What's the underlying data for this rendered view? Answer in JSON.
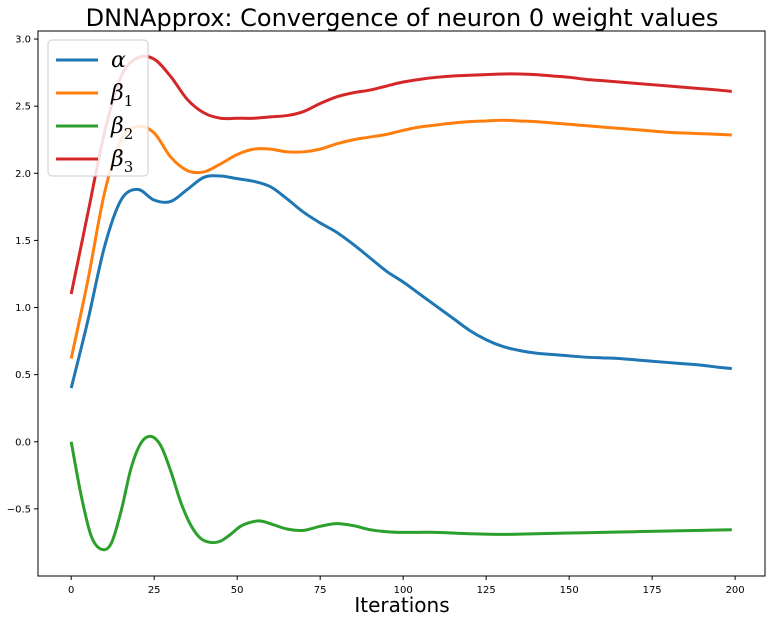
{
  "chart_data": {
    "type": "line",
    "title": "DNNApprox: Convergence of neuron 0 weight values",
    "xlabel": "Iterations",
    "ylabel": "",
    "xlim": [
      -10,
      209
    ],
    "ylim": [
      -1.0,
      3.06
    ],
    "xticks": [
      0,
      25,
      50,
      75,
      100,
      125,
      150,
      175,
      200
    ],
    "yticks": [
      -0.5,
      0.0,
      0.5,
      1.0,
      1.5,
      2.0,
      2.5,
      3.0
    ],
    "ytick_labels": [
      "−0.5",
      "0.0",
      "0.5",
      "1.0",
      "1.5",
      "2.0",
      "2.5",
      "3.0"
    ],
    "grid": false,
    "legend_position": "top-left",
    "series": [
      {
        "name": "α",
        "sub": "",
        "color": "#1f77b4",
        "x": [
          0,
          5,
          10,
          15,
          20,
          25,
          30,
          35,
          40,
          45,
          50,
          55,
          60,
          65,
          70,
          75,
          80,
          85,
          90,
          95,
          100,
          105,
          110,
          115,
          120,
          125,
          130,
          135,
          140,
          145,
          150,
          155,
          160,
          165,
          170,
          175,
          180,
          185,
          190,
          195,
          199
        ],
        "y": [
          0.4,
          0.9,
          1.45,
          1.8,
          1.88,
          1.8,
          1.79,
          1.88,
          1.97,
          1.98,
          1.96,
          1.94,
          1.9,
          1.81,
          1.71,
          1.63,
          1.56,
          1.47,
          1.37,
          1.27,
          1.19,
          1.1,
          1.01,
          0.92,
          0.83,
          0.76,
          0.71,
          0.68,
          0.66,
          0.65,
          0.64,
          0.63,
          0.625,
          0.62,
          0.61,
          0.6,
          0.59,
          0.58,
          0.57,
          0.555,
          0.545
        ]
      },
      {
        "name": "β",
        "sub": "1",
        "color": "#ff7f0e",
        "x": [
          0,
          5,
          10,
          15,
          20,
          25,
          30,
          35,
          40,
          45,
          50,
          55,
          60,
          65,
          70,
          75,
          80,
          85,
          90,
          95,
          100,
          105,
          110,
          115,
          120,
          125,
          130,
          135,
          140,
          145,
          150,
          155,
          160,
          165,
          170,
          175,
          180,
          185,
          190,
          195,
          199
        ],
        "y": [
          0.62,
          1.2,
          1.85,
          2.25,
          2.35,
          2.3,
          2.12,
          2.02,
          2.01,
          2.07,
          2.14,
          2.18,
          2.18,
          2.16,
          2.16,
          2.18,
          2.22,
          2.25,
          2.27,
          2.29,
          2.32,
          2.345,
          2.36,
          2.375,
          2.385,
          2.39,
          2.395,
          2.39,
          2.385,
          2.375,
          2.365,
          2.355,
          2.345,
          2.335,
          2.325,
          2.315,
          2.305,
          2.3,
          2.295,
          2.29,
          2.285
        ]
      },
      {
        "name": "β",
        "sub": "2",
        "color": "#2ca02c",
        "x": [
          0,
          3,
          6,
          9,
          12,
          15,
          18,
          21,
          24,
          27,
          30,
          33,
          36,
          39,
          42,
          45,
          48,
          51,
          54,
          57,
          60,
          65,
          70,
          75,
          80,
          85,
          90,
          95,
          100,
          110,
          120,
          130,
          140,
          150,
          160,
          170,
          180,
          190,
          199
        ],
        "y": [
          0.0,
          -0.4,
          -0.7,
          -0.8,
          -0.76,
          -0.52,
          -0.2,
          -0.01,
          0.04,
          -0.03,
          -0.22,
          -0.45,
          -0.62,
          -0.72,
          -0.75,
          -0.74,
          -0.69,
          -0.63,
          -0.6,
          -0.59,
          -0.61,
          -0.65,
          -0.66,
          -0.63,
          -0.61,
          -0.625,
          -0.655,
          -0.67,
          -0.675,
          -0.675,
          -0.685,
          -0.69,
          -0.685,
          -0.68,
          -0.675,
          -0.67,
          -0.665,
          -0.66,
          -0.655
        ]
      },
      {
        "name": "β",
        "sub": "3",
        "color": "#d62728",
        "x": [
          0,
          5,
          10,
          15,
          20,
          25,
          30,
          35,
          40,
          45,
          50,
          55,
          60,
          65,
          70,
          75,
          80,
          85,
          90,
          95,
          100,
          105,
          110,
          115,
          120,
          125,
          130,
          135,
          140,
          145,
          150,
          155,
          160,
          165,
          170,
          175,
          180,
          185,
          190,
          195,
          199
        ],
        "y": [
          1.1,
          1.7,
          2.3,
          2.72,
          2.86,
          2.85,
          2.72,
          2.55,
          2.45,
          2.41,
          2.41,
          2.41,
          2.42,
          2.43,
          2.46,
          2.52,
          2.57,
          2.6,
          2.62,
          2.65,
          2.68,
          2.7,
          2.715,
          2.725,
          2.73,
          2.735,
          2.74,
          2.74,
          2.735,
          2.725,
          2.715,
          2.7,
          2.69,
          2.68,
          2.67,
          2.66,
          2.65,
          2.64,
          2.63,
          2.62,
          2.61
        ]
      }
    ]
  }
}
